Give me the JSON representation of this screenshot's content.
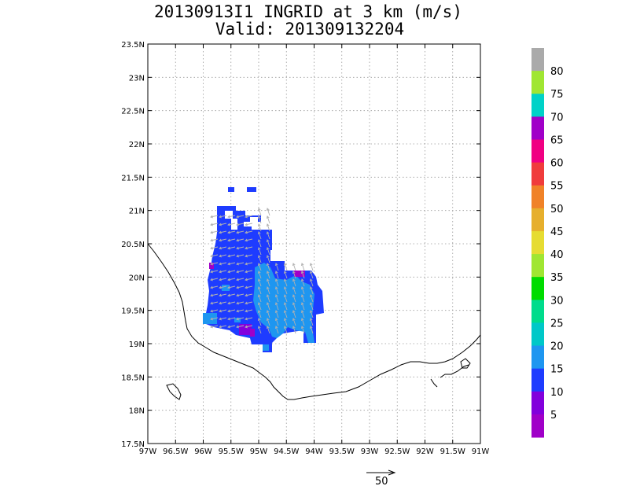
{
  "title": {
    "line1": "20130913I1 INGRID at 3 km (m/s)",
    "line2": "Valid: 201309132204"
  },
  "axes": {
    "lat_labels": [
      "23.5N",
      "23N",
      "22.5N",
      "22N",
      "21.5N",
      "21N",
      "20.5N",
      "20N",
      "19.5N",
      "19N",
      "18.5N",
      "18N",
      "17.5N"
    ],
    "lon_labels": [
      "97W",
      "96.5W",
      "96W",
      "95.5W",
      "95W",
      "94.5W",
      "94W",
      "93.5W",
      "93W",
      "92.5W",
      "92W",
      "91.5W",
      "91W"
    ],
    "lon_range": [
      -97,
      -91
    ],
    "lat_range": [
      17.5,
      23.5
    ],
    "grid": "dotted"
  },
  "colorbar": {
    "labels": [
      "80",
      "75",
      "70",
      "65",
      "60",
      "55",
      "50",
      "45",
      "40",
      "35",
      "30",
      "25",
      "20",
      "15",
      "10",
      "5"
    ],
    "colors": [
      "#aaaaaa",
      "#a0e632",
      "#00d2c8",
      "#a000c8",
      "#f00082",
      "#f03c3c",
      "#f08228",
      "#e6af2d",
      "#e6dc32",
      "#a0e632",
      "#00dc00",
      "#00dc8c",
      "#00c8c8",
      "#1e96f0",
      "#1e3cff",
      "#8200dc",
      "#a000c8"
    ]
  },
  "reference_vector": {
    "label": "50"
  },
  "wind_speed_field": {
    "units": "m/s",
    "regions": [
      {
        "level": "10-15",
        "color": "#1e3cff",
        "lon": [
          -95.7,
          -94.0
        ],
        "lat": [
          18.9,
          21.05
        ]
      },
      {
        "level": "15-20",
        "color": "#1e96f0",
        "lon": [
          -95.0,
          -94.1
        ],
        "lat": [
          19.0,
          20.2
        ]
      },
      {
        "level": "5-10",
        "color": "#8200dc",
        "lon": [
          -95.35,
          -95.2
        ],
        "lat": [
          19.1,
          19.25
        ]
      }
    ]
  }
}
